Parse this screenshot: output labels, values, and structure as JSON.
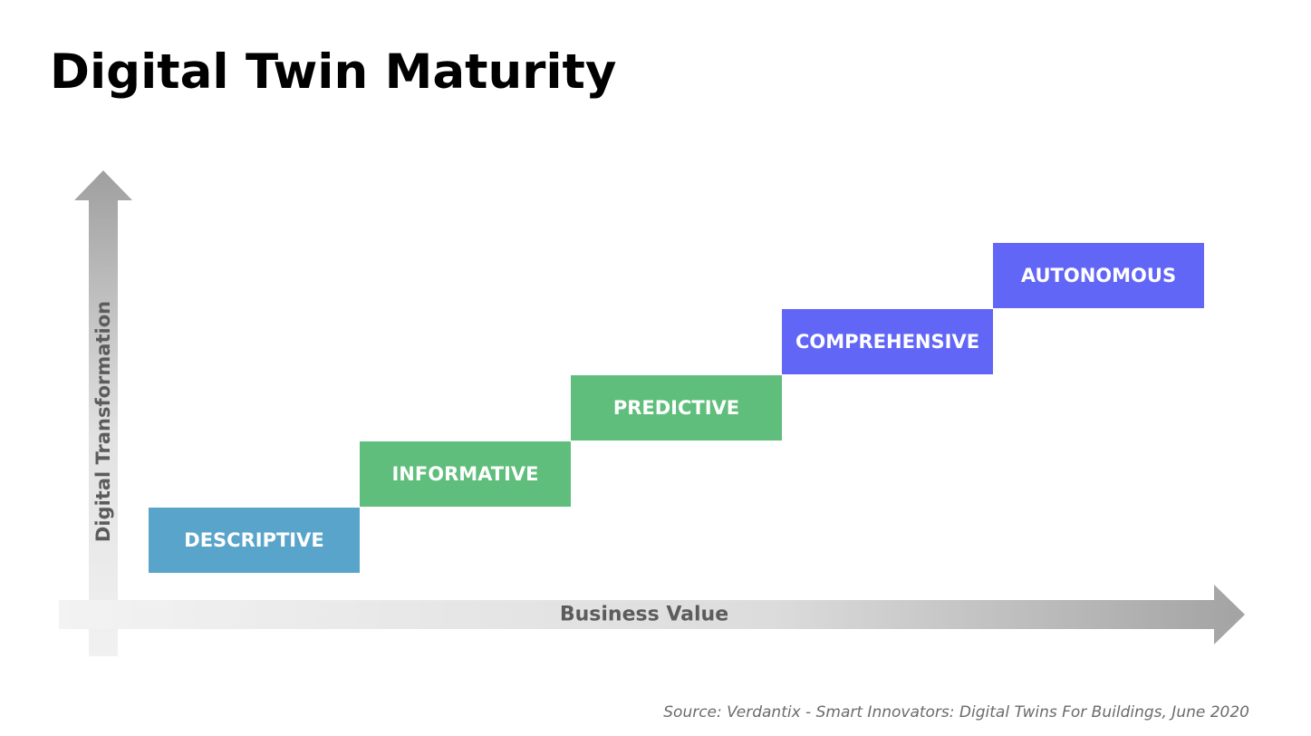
{
  "title": "Digital Twin Maturity",
  "axes": {
    "y_label": "Digital Transformation",
    "x_label": "Business Value"
  },
  "stages": [
    {
      "label": "DESCRIPTIVE",
      "color": "#59a4cb"
    },
    {
      "label": "INFORMATIVE",
      "color": "#5fbe7b"
    },
    {
      "label": "PREDICTIVE",
      "color": "#5fbe7b"
    },
    {
      "label": "COMPREHENSIVE",
      "color": "#6266f6"
    },
    {
      "label": "AUTONOMOUS",
      "color": "#6266f6"
    }
  ],
  "source": "Source: Verdantix - Smart Innovators: Digital Twins For Buildings, June 2020"
}
